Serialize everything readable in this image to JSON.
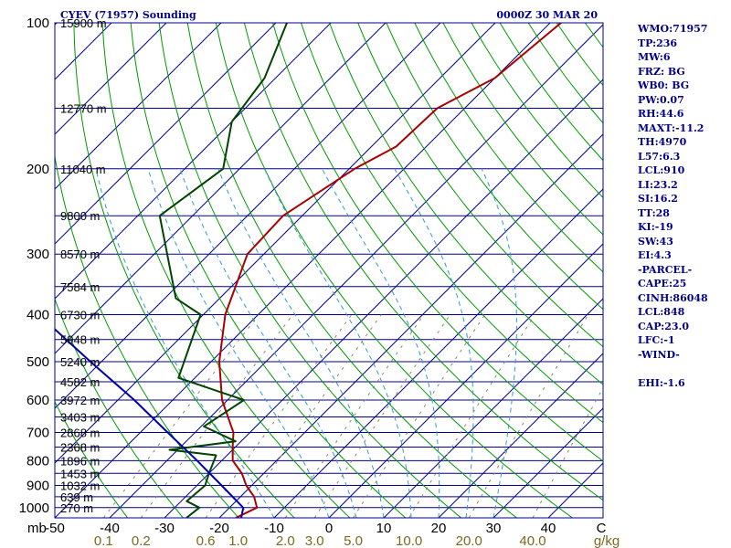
{
  "chart_data": {
    "type": "skew-t sounding",
    "title": "CYEV (71957) Sounding",
    "subtitle": "0000Z 30 MAR 20",
    "pressure_axis": {
      "label": "mb",
      "ticks": [
        100,
        200,
        300,
        400,
        500,
        600,
        700,
        800,
        900,
        1000
      ],
      "range": [
        100,
        1050
      ],
      "log_scale": true
    },
    "temperature_axis": {
      "label": "C",
      "ticks": [
        -50,
        -40,
        -30,
        -20,
        -10,
        0,
        10,
        20,
        30,
        40
      ],
      "skew_range_at_1050": [
        -50,
        50
      ]
    },
    "mixing_ratio_axis": {
      "label": "g/kg",
      "ticks": [
        "0.1",
        "0.2",
        "0.6",
        "1.0",
        "2.0",
        "3.0",
        "5.0",
        "10.0",
        "20.0",
        "40.0"
      ],
      "ticks_g_per_kg": [
        0.1,
        0.2,
        0.6,
        1.0,
        2.0,
        3.0,
        5.0,
        10.0,
        20.0,
        40.0
      ]
    },
    "height_labels": [
      {
        "p": 100,
        "text": "15900 m"
      },
      {
        "p": 150,
        "text": "12770 m"
      },
      {
        "p": 200,
        "text": "11040 m"
      },
      {
        "p": 250,
        "text": "9800 m"
      },
      {
        "p": 300,
        "text": "8570 m"
      },
      {
        "p": 350,
        "text": "7584 m"
      },
      {
        "p": 400,
        "text": "6730 m"
      },
      {
        "p": 450,
        "text": "5948 m"
      },
      {
        "p": 500,
        "text": "5240 m"
      },
      {
        "p": 550,
        "text": "4582 m"
      },
      {
        "p": 600,
        "text": "3972 m"
      },
      {
        "p": 650,
        "text": "3403 m"
      },
      {
        "p": 700,
        "text": "2868 m"
      },
      {
        "p": 750,
        "text": "2368 m"
      },
      {
        "p": 800,
        "text": "1896 m"
      },
      {
        "p": 850,
        "text": "1453 m"
      },
      {
        "p": 900,
        "text": "1032 m"
      },
      {
        "p": 950,
        "text": "639 m"
      },
      {
        "p": 1000,
        "text": "270 m"
      }
    ],
    "series": [
      {
        "kind": "temperature",
        "color": "#aa0000",
        "points": [
          {
            "p": 1050,
            "t": -17.0
          },
          {
            "p": 1000,
            "t": -15.0
          },
          {
            "p": 950,
            "t": -17.5
          },
          {
            "p": 900,
            "t": -21.0
          },
          {
            "p": 850,
            "t": -24.0
          },
          {
            "p": 800,
            "t": -28.0
          },
          {
            "p": 750,
            "t": -30.5
          },
          {
            "p": 700,
            "t": -33.0
          },
          {
            "p": 600,
            "t": -41.0
          },
          {
            "p": 500,
            "t": -48.5
          },
          {
            "p": 400,
            "t": -56.0
          },
          {
            "p": 300,
            "t": -63.0
          },
          {
            "p": 250,
            "t": -63.5
          },
          {
            "p": 200,
            "t": -59.0
          },
          {
            "p": 180,
            "t": -55.5
          },
          {
            "p": 150,
            "t": -55.0
          },
          {
            "p": 130,
            "t": -50.0
          },
          {
            "p": 100,
            "t": -48.0
          }
        ]
      },
      {
        "kind": "dewpoint",
        "color": "#004400",
        "points": [
          {
            "p": 1050,
            "t": -26.0
          },
          {
            "p": 1000,
            "t": -25.5
          },
          {
            "p": 970,
            "t": -29.0
          },
          {
            "p": 900,
            "t": -28.5
          },
          {
            "p": 850,
            "t": -30.0
          },
          {
            "p": 780,
            "t": -32.0
          },
          {
            "p": 760,
            "t": -41.5
          },
          {
            "p": 730,
            "t": -31.0
          },
          {
            "p": 680,
            "t": -39.5
          },
          {
            "p": 600,
            "t": -37.0
          },
          {
            "p": 540,
            "t": -53.0
          },
          {
            "p": 400,
            "t": -60.5
          },
          {
            "p": 370,
            "t": -68.0
          },
          {
            "p": 250,
            "t": -86.0
          },
          {
            "p": 200,
            "t": -83.0
          },
          {
            "p": 160,
            "t": -90.0
          },
          {
            "p": 130,
            "t": -92.0
          },
          {
            "p": 100,
            "t": -98.0
          }
        ]
      },
      {
        "kind": "parcel",
        "color": "#0000aa",
        "points": [
          {
            "p": 1050,
            "t": -16.0
          },
          {
            "p": 1000,
            "t": -17.5
          },
          {
            "p": 900,
            "t": -25.5
          },
          {
            "p": 800,
            "t": -34.5
          },
          {
            "p": 700,
            "t": -45.0
          },
          {
            "p": 600,
            "t": -57.0
          },
          {
            "p": 500,
            "t": -72.0
          },
          {
            "p": 400,
            "t": -90.0
          },
          {
            "p": 300,
            "t": -113.0
          },
          {
            "p": 250,
            "t": -127.0
          },
          {
            "p": 200,
            "t": -143.0
          },
          {
            "p": 150,
            "t": -165.0
          },
          {
            "p": 120,
            "t": -181.0
          }
        ]
      }
    ],
    "indices": [
      "WMO:71957",
      "TP:236",
      "MW:6",
      "FRZ: BG",
      "WB0: BG",
      "PW:0.07",
      "RH:44.6",
      "MAXT:-11.2",
      "TH:4970",
      "L57:6.3",
      "LCL:910",
      "LI:23.2",
      "SI:16.2",
      "TT:28",
      "KI:-19",
      "SW:43",
      "EI:4.3",
      "-PARCEL-",
      "CAPE:25",
      "CINH:86048",
      "LCL:848",
      "CAP:23.0",
      "LFC:-1",
      "-WIND-",
      "",
      "EHI:-1.6"
    ],
    "colors": {
      "isobars": "#00008b",
      "isotherms": "#00008b",
      "dry_adiabats": "#009900",
      "moist_adiabats": "#3399cc",
      "mixing_ratio": "#888866",
      "axis_text": "#000000",
      "mixing_ratio_text": "#7a6a20"
    }
  }
}
